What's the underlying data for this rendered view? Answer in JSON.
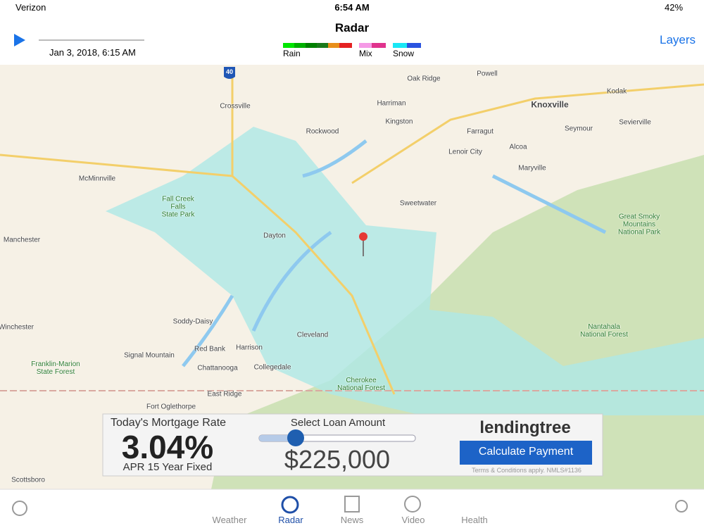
{
  "status": {
    "carrier": "Verizon",
    "time": "6:54 AM",
    "battery": "42%"
  },
  "header": {
    "title": "Radar",
    "timestamp": "Jan 3, 2018, 6:15 AM",
    "layers": "Layers",
    "legend": [
      "Rain",
      "Mix",
      "Snow"
    ]
  },
  "map": {
    "shields": [
      "40"
    ],
    "labels": [
      "Oak Ridge",
      "Powell",
      "Harriman",
      "Crossville",
      "Knoxville",
      "Kodak",
      "Kingston",
      "Rockwood",
      "Farragut",
      "Seymour",
      "Sevierville",
      "Lenoir City",
      "Alcoa",
      "Maryville",
      "McMinnville",
      "Fall Creek\nFalls\nState Park",
      "Sweetwater",
      "Great Smoky\nMountains\nNational Park",
      "Manchester",
      "Dayton",
      "Soddy-Daisy",
      "Nantahala\nNational Forest",
      "Winchester",
      "Cleveland",
      "Red Bank",
      "Harrison",
      "Signal Mountain",
      "Chattanooga",
      "Collegedale",
      "Franklin-Marion\nState Forest",
      "Cherokee\nNational Forest",
      "East Ridge",
      "Fort Oglethorpe",
      "Scottsboro"
    ]
  },
  "ad": {
    "heading": "Today's Mortgage Rate",
    "rate": "3.04%",
    "rate_note": "APR 15 Year Fixed",
    "slider_label": "Select Loan Amount",
    "amount": "$225,000",
    "brand": "lendingtree",
    "button": "Calculate Payment",
    "terms": "Terms & Conditions apply. NMLS#1136"
  },
  "tabs": [
    "Weather",
    "Radar",
    "News",
    "Video",
    "Health"
  ]
}
